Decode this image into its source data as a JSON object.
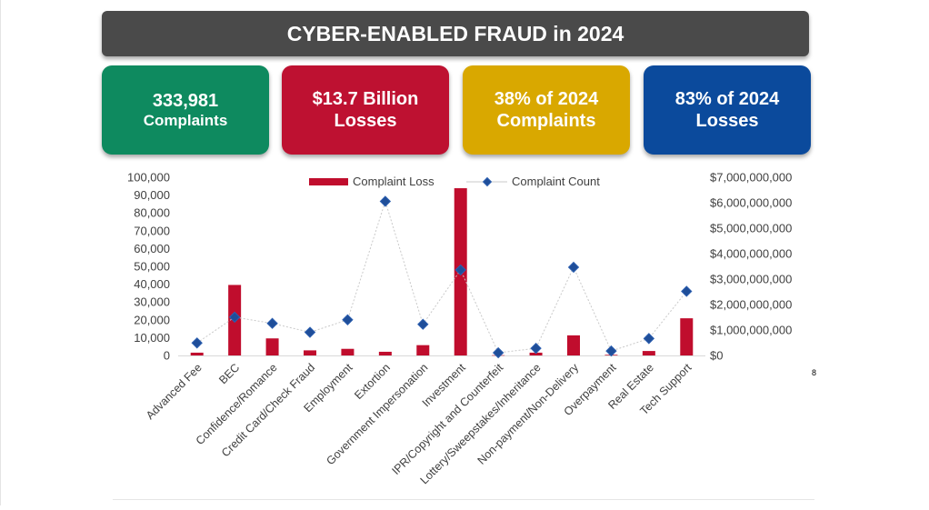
{
  "title": "CYBER-ENABLED FRAUD in 2024",
  "stats": [
    {
      "value": "333,981",
      "label": "Complaints",
      "color": "#0e8a5f"
    },
    {
      "value": "$13.7 Billion",
      "label": "Losses",
      "color": "#be1131"
    },
    {
      "value": "38% of  2024",
      "label": "Complaints",
      "color": "#d9a800"
    },
    {
      "value": "83% of 2024",
      "label": "Losses",
      "color": "#0b4a9c"
    }
  ],
  "slide_number": "8",
  "chart_data": {
    "type": "bar",
    "categories": [
      "Advanced Fee",
      "BEC",
      "Confidence/Romance",
      "Credit Card/Check Fraud",
      "Employment",
      "Extortion",
      "Government Impersonation",
      "Investment",
      "IPR/Copyright and Counterfeit",
      "Lottery/Sweepstakes/Inheritance",
      "Non-payment/Non-Delivery",
      "Overpayment",
      "Real Estate",
      "Tech Support"
    ],
    "series": [
      {
        "name": "Complaint Loss",
        "type": "bar",
        "axis": "right",
        "color": "#c00d2d",
        "values": [
          110000000,
          2770000000,
          670000000,
          200000000,
          260000000,
          145000000,
          405000000,
          6570000000,
          10000000,
          110000000,
          790000000,
          25000000,
          175000000,
          1460000000
        ]
      },
      {
        "name": "Complaint Count",
        "type": "line",
        "axis": "left",
        "color": "#1f4e99",
        "values": [
          7000,
          21500,
          18000,
          13000,
          20000,
          86500,
          17500,
          48000,
          1500,
          4000,
          49500,
          2500,
          9500,
          36000
        ]
      }
    ],
    "y_left": {
      "min": 0,
      "max": 100000,
      "ticks": [
        "0",
        "10,000",
        "20,000",
        "30,000",
        "40,000",
        "50,000",
        "60,000",
        "70,000",
        "80,000",
        "90,000",
        "100,000"
      ]
    },
    "y_right": {
      "min": 0,
      "max": 7000000000,
      "ticks": [
        "$0",
        "$1,000,000,000",
        "$2,000,000,000",
        "$3,000,000,000",
        "$4,000,000,000",
        "$5,000,000,000",
        "$6,000,000,000",
        "$7,000,000,000"
      ]
    },
    "legend_position": "top",
    "grid": false
  }
}
